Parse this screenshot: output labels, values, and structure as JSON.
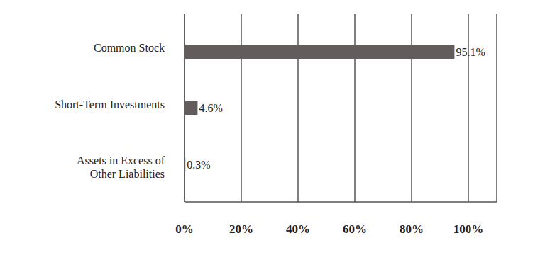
{
  "chart_data": {
    "type": "bar",
    "orientation": "horizontal",
    "categories": [
      "Common Stock",
      "Short-Term Investments",
      "Assets in Excess of Other Liabilities"
    ],
    "values": [
      95.1,
      4.6,
      0.3
    ],
    "value_labels": [
      "95.1%",
      "4.6%",
      "0.3%"
    ],
    "data_labels": true,
    "color": "#625c5c",
    "xlim": [
      0,
      110
    ],
    "xticks": [
      {
        "value": 0,
        "label": "0%"
      },
      {
        "value": 20,
        "label": "20%"
      },
      {
        "value": 40,
        "label": "40%"
      },
      {
        "value": 60,
        "label": "60%"
      },
      {
        "value": 80,
        "label": "80%"
      },
      {
        "value": 100,
        "label": "100%"
      }
    ],
    "grid": true
  }
}
